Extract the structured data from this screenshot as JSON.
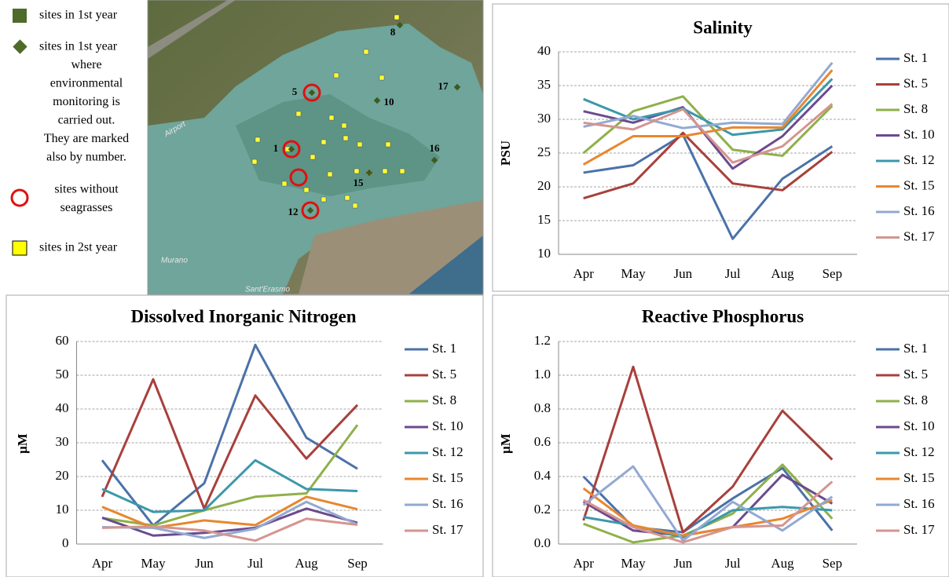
{
  "map": {
    "legend": [
      {
        "lines": [
          "sites in 1st year"
        ]
      },
      {
        "lines": [
          "sites in 1st year",
          "where",
          "environmental",
          "monitoring is",
          "carried out.",
          "They are marked",
          "also by number."
        ]
      },
      {
        "lines": [
          "sites without",
          "seagrasses"
        ]
      },
      {
        "lines": [
          "sites in 2st year"
        ]
      }
    ],
    "place_labels": [
      "Airport",
      "Murano",
      "Sant'Erasmo"
    ],
    "station_labels": [
      "8",
      "5",
      "17",
      "10",
      "1",
      "16",
      "15",
      "12"
    ]
  },
  "chart_data": [
    {
      "type": "line",
      "title": "Salinity",
      "y_label": "PSU",
      "categories": [
        "Apr",
        "May",
        "Jun",
        "Jul",
        "Aug",
        "Sep"
      ],
      "ylim": [
        10,
        40
      ],
      "yticks": [
        10,
        15,
        20,
        25,
        30,
        35,
        40
      ],
      "grid": true,
      "legend": "right",
      "series": [
        {
          "name": "St. 1",
          "color": "#4a72a8",
          "values": [
            22.1,
            23.2,
            27.7,
            12.3,
            21.2,
            26
          ]
        },
        {
          "name": "St. 5",
          "color": "#a8403c",
          "values": [
            18.3,
            20.5,
            28,
            20.5,
            19.5,
            25.2
          ]
        },
        {
          "name": "St. 8",
          "color": "#8fb04a",
          "values": [
            25,
            31.2,
            33.4,
            25.5,
            24.6,
            32
          ]
        },
        {
          "name": "St. 10",
          "color": "#6c4a8e",
          "values": [
            31.2,
            29.5,
            31.8,
            22.7,
            27.5,
            35
          ]
        },
        {
          "name": "St. 12",
          "color": "#3c98ab",
          "values": [
            33,
            30,
            31.6,
            27.7,
            28.5,
            36
          ]
        },
        {
          "name": "St. 15",
          "color": "#e8872e",
          "values": [
            23.3,
            27.5,
            27.5,
            28.8,
            28.8,
            37.3
          ]
        },
        {
          "name": "St. 16",
          "color": "#93a9d2",
          "values": [
            28.9,
            30.5,
            28.7,
            29.5,
            29.3,
            38.4
          ]
        },
        {
          "name": "St. 17",
          "color": "#d49591",
          "values": [
            29.5,
            28.5,
            31.5,
            23.6,
            26,
            32.3
          ]
        }
      ]
    },
    {
      "type": "line",
      "title": "Dissolved Inorganic Nitrogen",
      "y_label": "μM",
      "categories": [
        "Apr",
        "May",
        "Jun",
        "Jul",
        "Aug",
        "Sep"
      ],
      "ylim": [
        0,
        60
      ],
      "yticks": [
        0,
        10,
        20,
        30,
        40,
        50,
        60
      ],
      "grid": true,
      "legend": "right",
      "series": [
        {
          "name": "St. 1",
          "color": "#4a72a8",
          "values": [
            24.8,
            5.5,
            18,
            59,
            31.5,
            22.3
          ]
        },
        {
          "name": "St. 5",
          "color": "#a8403c",
          "values": [
            14,
            48.8,
            10.5,
            44,
            25.3,
            41.2
          ]
        },
        {
          "name": "St. 8",
          "color": "#8fb04a",
          "values": [
            7.7,
            5.5,
            10,
            14,
            15,
            35.3
          ]
        },
        {
          "name": "St. 10",
          "color": "#6c4a8e",
          "values": [
            7.8,
            2.5,
            3.3,
            4.8,
            10.5,
            6.3
          ]
        },
        {
          "name": "St. 12",
          "color": "#3c98ab",
          "values": [
            16.3,
            9.5,
            10,
            24.8,
            16.3,
            15.7
          ]
        },
        {
          "name": "St. 15",
          "color": "#e8872e",
          "values": [
            11,
            4.8,
            7,
            5.6,
            14,
            10.3
          ]
        },
        {
          "name": "St. 16",
          "color": "#93a9d2",
          "values": [
            5,
            4.8,
            1.8,
            4.5,
            12.5,
            5.8
          ]
        },
        {
          "name": "St. 17",
          "color": "#d49591",
          "values": [
            4.8,
            5.2,
            4,
            1,
            7.5,
            5.7
          ]
        }
      ]
    },
    {
      "type": "line",
      "title": "Reactive Phosphorus",
      "y_label": "μM",
      "categories": [
        "Apr",
        "May",
        "Jun",
        "Jul",
        "Aug",
        "Sep"
      ],
      "ylim": [
        0,
        1.2
      ],
      "yticks": [
        {
          "value": 0,
          "label": "0.0"
        },
        0.2,
        0.4,
        0.6,
        0.8,
        {
          "value": 1,
          "label": "1.0"
        },
        1.2
      ],
      "grid": true,
      "legend": "right",
      "series": [
        {
          "name": "St. 1",
          "color": "#4a72a8",
          "values": [
            0.4,
            0.1,
            0.07,
            0.27,
            0.45,
            0.08
          ]
        },
        {
          "name": "St. 5",
          "color": "#a8403c",
          "values": [
            0.14,
            1.05,
            0.07,
            0.34,
            0.79,
            0.5
          ]
        },
        {
          "name": "St. 8",
          "color": "#8fb04a",
          "values": [
            0.12,
            0.01,
            0.05,
            0.18,
            0.47,
            0.15
          ]
        },
        {
          "name": "St. 10",
          "color": "#6c4a8e",
          "values": [
            0.25,
            0.08,
            0.05,
            0.1,
            0.41,
            0.24
          ]
        },
        {
          "name": "St. 12",
          "color": "#3c98ab",
          "values": [
            0.16,
            0.11,
            0.04,
            0.2,
            0.22,
            0.2
          ]
        },
        {
          "name": "St. 15",
          "color": "#e8872e",
          "values": [
            0.33,
            0.11,
            0.05,
            0.1,
            0.15,
            0.26
          ]
        },
        {
          "name": "St. 16",
          "color": "#93a9d2",
          "values": [
            0.23,
            0.46,
            0.02,
            0.25,
            0.08,
            0.28
          ]
        },
        {
          "name": "St. 17",
          "color": "#d49591",
          "values": [
            0.26,
            0.1,
            0.01,
            0.1,
            0.11,
            0.37
          ]
        }
      ]
    }
  ]
}
